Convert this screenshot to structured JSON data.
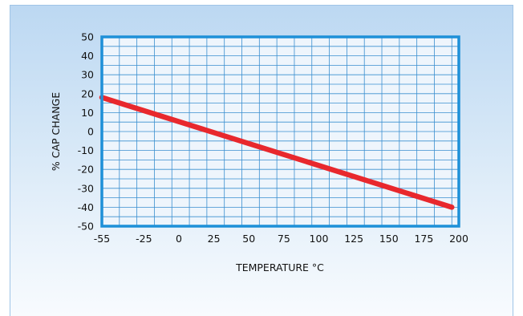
{
  "chart_data": {
    "type": "line",
    "title": "",
    "xlabel": "TEMPERATURE °C",
    "ylabel": "% CAP CHANGE",
    "xlim": [
      -55,
      200
    ],
    "ylim": [
      -50,
      50
    ],
    "x_ticks": [
      -55,
      -25,
      0,
      25,
      50,
      75,
      100,
      125,
      150,
      175,
      200
    ],
    "y_ticks": [
      50,
      40,
      30,
      20,
      10,
      0,
      -10,
      -20,
      -30,
      -40,
      -50
    ],
    "grid": true,
    "legend": "none",
    "series": [
      {
        "x": [
          -55,
          195
        ],
        "y": [
          18,
          -40
        ]
      }
    ],
    "colors": {
      "line": "#e8282d",
      "frame": "#1e90d8",
      "grid": "#3a8fd0",
      "plot_bg": "#eef5fc"
    }
  }
}
